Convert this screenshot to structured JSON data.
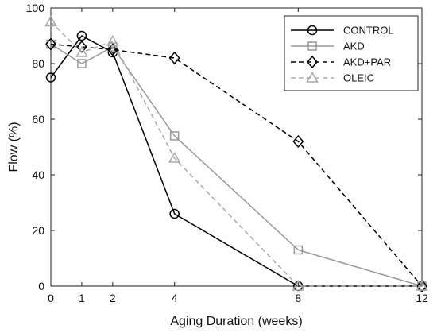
{
  "chart_data": {
    "type": "line",
    "xlabel": "Aging Duration (weeks)",
    "ylabel": "Flow (%)",
    "xlim": [
      0,
      12
    ],
    "ylim": [
      0,
      100
    ],
    "xticks": [
      0,
      1,
      2,
      4,
      8,
      12
    ],
    "yticks": [
      0,
      20,
      40,
      60,
      80,
      100
    ],
    "grid": false,
    "legend_position": "top-right",
    "x": [
      0,
      1,
      2,
      4,
      8,
      12
    ],
    "series": [
      {
        "name": "CONTROL",
        "values": [
          75,
          90,
          84,
          26,
          0,
          0
        ],
        "color": "#000000",
        "dash": "solid",
        "marker": "circle"
      },
      {
        "name": "AKD",
        "values": [
          87,
          80,
          86,
          54,
          13,
          0
        ],
        "color": "#999999",
        "dash": "solid",
        "marker": "square"
      },
      {
        "name": "AKD+PAR",
        "values": [
          87,
          86,
          85,
          82,
          52,
          0
        ],
        "color": "#000000",
        "dash": "dashed",
        "marker": "diamond"
      },
      {
        "name": "OLEIC",
        "values": [
          95,
          84,
          88,
          46,
          0,
          0
        ],
        "color": "#aaaaaa",
        "dash": "dashed",
        "marker": "triangle"
      }
    ]
  }
}
